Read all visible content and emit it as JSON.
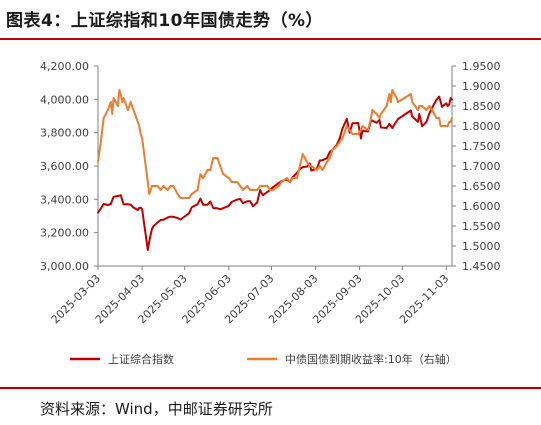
{
  "title": "图表4：上证综指和10年国债走势（%）",
  "source": "资料来源：Wind，中邮证券研究所",
  "colors": {
    "accent": "#c00000",
    "series1": "#c00000",
    "series2": "#ed7d31"
  },
  "chart_data": {
    "type": "line",
    "title": "图表4：上证综指和10年国债走势（%）",
    "x_ticks": [
      "2025-03-03",
      "2025-04-03",
      "2025-05-03",
      "2025-06-03",
      "2025-07-03",
      "2025-08-03",
      "2025-09-03",
      "2025-10-03",
      "2025-11-03"
    ],
    "x_range": [
      "2025-03-03",
      "2025-11-07"
    ],
    "y_left": {
      "range": [
        3000,
        4200
      ],
      "ticks": [
        "4,200.00",
        "4,000.00",
        "3,800.00",
        "3,600.00",
        "3,400.00",
        "3,200.00",
        "3,000.00"
      ],
      "tick_values": [
        4200,
        4000,
        3800,
        3600,
        3400,
        3200,
        3000
      ]
    },
    "y_right": {
      "range": [
        1.45,
        1.95
      ],
      "ticks": [
        "1.9500",
        "1.9000",
        "1.8500",
        "1.8000",
        "1.7500",
        "1.7000",
        "1.6500",
        "1.6000",
        "1.5500",
        "1.5000",
        "1.4500"
      ],
      "tick_values": [
        1.95,
        1.9,
        1.85,
        1.8,
        1.75,
        1.7,
        1.65,
        1.6,
        1.55,
        1.5,
        1.45
      ]
    },
    "grid": false,
    "legend_position": "bottom",
    "series": [
      {
        "name": "上证综合指数",
        "axis": "left",
        "color": "#c00000",
        "points": [
          [
            "2025-03-03",
            3320
          ],
          [
            "2025-03-05",
            3345
          ],
          [
            "2025-03-07",
            3372
          ],
          [
            "2025-03-10",
            3366
          ],
          [
            "2025-03-12",
            3372
          ],
          [
            "2025-03-14",
            3415
          ],
          [
            "2025-03-17",
            3420
          ],
          [
            "2025-03-19",
            3425
          ],
          [
            "2025-03-21",
            3370
          ],
          [
            "2025-03-24",
            3370
          ],
          [
            "2025-03-26",
            3368
          ],
          [
            "2025-03-28",
            3351
          ],
          [
            "2025-03-31",
            3336
          ],
          [
            "2025-04-01",
            3348
          ],
          [
            "2025-04-02",
            3350
          ],
          [
            "2025-04-03",
            3342
          ],
          [
            "2025-04-07",
            3096
          ],
          [
            "2025-04-08",
            3145
          ],
          [
            "2025-04-09",
            3186
          ],
          [
            "2025-04-10",
            3223
          ],
          [
            "2025-04-11",
            3238
          ],
          [
            "2025-04-14",
            3262
          ],
          [
            "2025-04-16",
            3276
          ],
          [
            "2025-04-18",
            3277
          ],
          [
            "2025-04-21",
            3291
          ],
          [
            "2025-04-23",
            3296
          ],
          [
            "2025-04-25",
            3295
          ],
          [
            "2025-04-28",
            3288
          ],
          [
            "2025-04-30",
            3279
          ],
          [
            "2025-05-06",
            3316
          ],
          [
            "2025-05-08",
            3352
          ],
          [
            "2025-05-12",
            3370
          ],
          [
            "2025-05-14",
            3404
          ],
          [
            "2025-05-16",
            3367
          ],
          [
            "2025-05-19",
            3367
          ],
          [
            "2025-05-21",
            3387
          ],
          [
            "2025-05-23",
            3348
          ],
          [
            "2025-05-26",
            3346
          ],
          [
            "2025-05-28",
            3340
          ],
          [
            "2025-05-30",
            3347
          ],
          [
            "2025-06-03",
            3361
          ],
          [
            "2025-06-05",
            3384
          ],
          [
            "2025-06-09",
            3399
          ],
          [
            "2025-06-11",
            3402
          ],
          [
            "2025-06-13",
            3377
          ],
          [
            "2025-06-16",
            3388
          ],
          [
            "2025-06-18",
            3388
          ],
          [
            "2025-06-20",
            3359
          ],
          [
            "2025-06-23",
            3381
          ],
          [
            "2025-06-25",
            3455
          ],
          [
            "2025-06-27",
            3424
          ],
          [
            "2025-06-30",
            3444
          ],
          [
            "2025-07-02",
            3454
          ],
          [
            "2025-07-04",
            3473
          ],
          [
            "2025-07-08",
            3497
          ],
          [
            "2025-07-10",
            3509
          ],
          [
            "2025-07-14",
            3519
          ],
          [
            "2025-07-16",
            3503
          ],
          [
            "2025-07-18",
            3534
          ],
          [
            "2025-07-21",
            3559
          ],
          [
            "2025-07-23",
            3582
          ],
          [
            "2025-07-25",
            3593
          ],
          [
            "2025-07-28",
            3597
          ],
          [
            "2025-07-30",
            3615
          ],
          [
            "2025-07-31",
            3573
          ],
          [
            "2025-08-04",
            3583
          ],
          [
            "2025-08-06",
            3633
          ],
          [
            "2025-08-08",
            3635
          ],
          [
            "2025-08-11",
            3647
          ],
          [
            "2025-08-13",
            3683
          ],
          [
            "2025-08-15",
            3697
          ],
          [
            "2025-08-18",
            3728
          ],
          [
            "2025-08-20",
            3766
          ],
          [
            "2025-08-22",
            3825
          ],
          [
            "2025-08-25",
            3883
          ],
          [
            "2025-08-27",
            3800
          ],
          [
            "2025-08-29",
            3857
          ],
          [
            "2025-09-02",
            3858
          ],
          [
            "2025-09-04",
            3765
          ],
          [
            "2025-09-05",
            3812
          ],
          [
            "2025-09-09",
            3807
          ],
          [
            "2025-09-11",
            3875
          ],
          [
            "2025-09-15",
            3860
          ],
          [
            "2025-09-17",
            3876
          ],
          [
            "2025-09-18",
            3831
          ],
          [
            "2025-09-22",
            3828
          ],
          [
            "2025-09-24",
            3853
          ],
          [
            "2025-09-26",
            3828
          ],
          [
            "2025-09-30",
            3882
          ],
          [
            "2025-10-09",
            3933
          ],
          [
            "2025-10-10",
            3897
          ],
          [
            "2025-10-14",
            3865
          ],
          [
            "2025-10-15",
            3912
          ],
          [
            "2025-10-17",
            3839
          ],
          [
            "2025-10-20",
            3864
          ],
          [
            "2025-10-22",
            3914
          ],
          [
            "2025-10-24",
            3950
          ],
          [
            "2025-10-27",
            3996
          ],
          [
            "2025-10-29",
            4016
          ],
          [
            "2025-10-30",
            3987
          ],
          [
            "2025-10-31",
            3955
          ],
          [
            "2025-11-03",
            3976
          ],
          [
            "2025-11-04",
            3960
          ],
          [
            "2025-11-05",
            3969
          ],
          [
            "2025-11-06",
            4007
          ],
          [
            "2025-11-07",
            3998
          ]
        ]
      },
      {
        "name": "中债国债到期收益率:10年（右轴）",
        "axis": "right",
        "color": "#ed7d31",
        "points": [
          [
            "2025-03-03",
            1.71
          ],
          [
            "2025-03-05",
            1.76
          ],
          [
            "2025-03-07",
            1.82
          ],
          [
            "2025-03-10",
            1.84
          ],
          [
            "2025-03-12",
            1.86
          ],
          [
            "2025-03-13",
            1.83
          ],
          [
            "2025-03-14",
            1.87
          ],
          [
            "2025-03-17",
            1.85
          ],
          [
            "2025-03-18",
            1.89
          ],
          [
            "2025-03-19",
            1.88
          ],
          [
            "2025-03-20",
            1.86
          ],
          [
            "2025-03-21",
            1.87
          ],
          [
            "2025-03-24",
            1.84
          ],
          [
            "2025-03-26",
            1.86
          ],
          [
            "2025-03-28",
            1.84
          ],
          [
            "2025-03-31",
            1.81
          ],
          [
            "2025-04-01",
            1.8
          ],
          [
            "2025-04-02",
            1.78
          ],
          [
            "2025-04-03",
            1.77
          ],
          [
            "2025-04-07",
            1.66
          ],
          [
            "2025-04-08",
            1.63
          ],
          [
            "2025-04-09",
            1.64
          ],
          [
            "2025-04-10",
            1.65
          ],
          [
            "2025-04-14",
            1.65
          ],
          [
            "2025-04-16",
            1.64
          ],
          [
            "2025-04-18",
            1.65
          ],
          [
            "2025-04-21",
            1.64
          ],
          [
            "2025-04-23",
            1.65
          ],
          [
            "2025-04-25",
            1.65
          ],
          [
            "2025-04-28",
            1.63
          ],
          [
            "2025-04-30",
            1.62
          ],
          [
            "2025-05-06",
            1.62
          ],
          [
            "2025-05-08",
            1.63
          ],
          [
            "2025-05-12",
            1.64
          ],
          [
            "2025-05-14",
            1.68
          ],
          [
            "2025-05-16",
            1.67
          ],
          [
            "2025-05-19",
            1.69
          ],
          [
            "2025-05-21",
            1.69
          ],
          [
            "2025-05-23",
            1.72
          ],
          [
            "2025-05-26",
            1.72
          ],
          [
            "2025-05-28",
            1.7
          ],
          [
            "2025-05-30",
            1.68
          ],
          [
            "2025-06-03",
            1.67
          ],
          [
            "2025-06-05",
            1.66
          ],
          [
            "2025-06-09",
            1.66
          ],
          [
            "2025-06-11",
            1.65
          ],
          [
            "2025-06-13",
            1.64
          ],
          [
            "2025-06-16",
            1.65
          ],
          [
            "2025-06-18",
            1.64
          ],
          [
            "2025-06-20",
            1.64
          ],
          [
            "2025-06-23",
            1.64
          ],
          [
            "2025-06-25",
            1.65
          ],
          [
            "2025-06-27",
            1.65
          ],
          [
            "2025-06-30",
            1.65
          ],
          [
            "2025-07-02",
            1.64
          ],
          [
            "2025-07-04",
            1.64
          ],
          [
            "2025-07-08",
            1.65
          ],
          [
            "2025-07-10",
            1.66
          ],
          [
            "2025-07-14",
            1.67
          ],
          [
            "2025-07-16",
            1.66
          ],
          [
            "2025-07-18",
            1.67
          ],
          [
            "2025-07-21",
            1.67
          ],
          [
            "2025-07-23",
            1.7
          ],
          [
            "2025-07-25",
            1.73
          ],
          [
            "2025-07-28",
            1.71
          ],
          [
            "2025-07-30",
            1.7
          ],
          [
            "2025-07-31",
            1.7
          ],
          [
            "2025-08-04",
            1.69
          ],
          [
            "2025-08-06",
            1.7
          ],
          [
            "2025-08-08",
            1.69
          ],
          [
            "2025-08-11",
            1.71
          ],
          [
            "2025-08-13",
            1.72
          ],
          [
            "2025-08-15",
            1.74
          ],
          [
            "2025-08-18",
            1.75
          ],
          [
            "2025-08-20",
            1.76
          ],
          [
            "2025-08-22",
            1.77
          ],
          [
            "2025-08-25",
            1.8
          ],
          [
            "2025-08-27",
            1.79
          ],
          [
            "2025-08-29",
            1.78
          ],
          [
            "2025-09-02",
            1.78
          ],
          [
            "2025-09-04",
            1.79
          ],
          [
            "2025-09-05",
            1.8
          ],
          [
            "2025-09-09",
            1.79
          ],
          [
            "2025-09-11",
            1.82
          ],
          [
            "2025-09-12",
            1.84
          ],
          [
            "2025-09-15",
            1.83
          ],
          [
            "2025-09-17",
            1.82
          ],
          [
            "2025-09-18",
            1.83
          ],
          [
            "2025-09-22",
            1.85
          ],
          [
            "2025-09-24",
            1.88
          ],
          [
            "2025-09-25",
            1.86
          ],
          [
            "2025-09-26",
            1.89
          ],
          [
            "2025-09-29",
            1.87
          ],
          [
            "2025-09-30",
            1.86
          ],
          [
            "2025-10-09",
            1.88
          ],
          [
            "2025-10-10",
            1.86
          ],
          [
            "2025-10-14",
            1.84
          ],
          [
            "2025-10-15",
            1.85
          ],
          [
            "2025-10-17",
            1.85
          ],
          [
            "2025-10-20",
            1.84
          ],
          [
            "2025-10-22",
            1.85
          ],
          [
            "2025-10-24",
            1.84
          ],
          [
            "2025-10-27",
            1.82
          ],
          [
            "2025-10-29",
            1.82
          ],
          [
            "2025-10-30",
            1.8
          ],
          [
            "2025-10-31",
            1.8
          ],
          [
            "2025-11-03",
            1.8
          ],
          [
            "2025-11-04",
            1.8
          ],
          [
            "2025-11-05",
            1.81
          ],
          [
            "2025-11-06",
            1.81
          ],
          [
            "2025-11-07",
            1.82
          ]
        ]
      }
    ]
  }
}
